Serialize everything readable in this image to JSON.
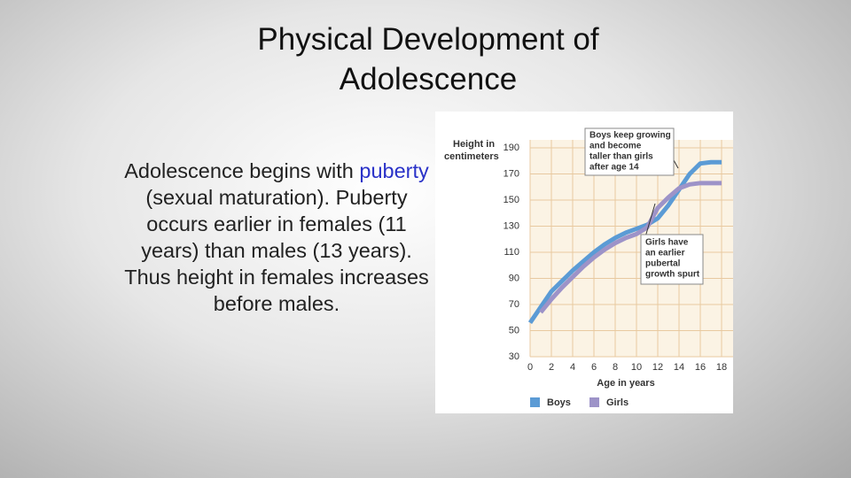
{
  "slide": {
    "title": "Physical Development of Adolescence",
    "body": [
      "Adolescence begins with ",
      "puberty",
      " (sexual maturation). Puberty occurs earlier in females (11 years) than males   (13 years). Thus height in females increases before males."
    ]
  },
  "chart_data": {
    "type": "line",
    "y_label": [
      "Height in",
      "centimeters"
    ],
    "x_label": "Age in years",
    "x": [
      0,
      1,
      2,
      3,
      4,
      5,
      6,
      7,
      8,
      9,
      10,
      11,
      12,
      13,
      14,
      15,
      16,
      17,
      18
    ],
    "series": [
      {
        "name": "Boys",
        "color": "#5b9bd5",
        "values": [
          56,
          68,
          80,
          88,
          96,
          103,
          110,
          116,
          121,
          125,
          128,
          131,
          136,
          146,
          158,
          170,
          178,
          179,
          179
        ]
      },
      {
        "name": "Girls",
        "color": "#9d93c8",
        "values": [
          null,
          64,
          74,
          83,
          91,
          99,
          106,
          112,
          117,
          121,
          124,
          129,
          144,
          152,
          159,
          162,
          163,
          163,
          163
        ]
      }
    ],
    "xlim": [
      0,
      18
    ],
    "xticks": [
      0,
      2,
      4,
      6,
      8,
      10,
      12,
      14,
      16,
      18
    ],
    "ylim": [
      30,
      190
    ],
    "yticks": [
      30,
      50,
      70,
      90,
      110,
      130,
      150,
      170,
      190
    ],
    "grid": true,
    "annotations": [
      {
        "lines": [
          "Boys keep growing",
          "and become",
          "taller than girls",
          "after age 14"
        ]
      },
      {
        "lines": [
          "Girls have",
          "an earlier",
          "pubertal",
          "growth spurt"
        ]
      }
    ]
  }
}
